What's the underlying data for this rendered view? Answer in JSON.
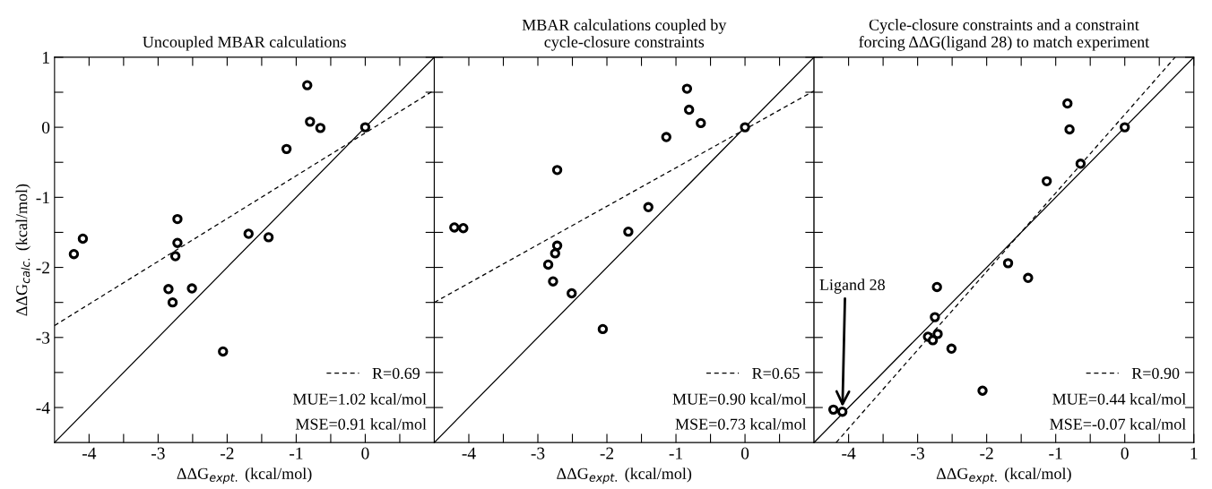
{
  "chart_data": [
    {
      "type": "scatter",
      "title": "Uncoupled MBAR calculations",
      "xlabel": "ΔΔG$_{expt.}$ (kcal/mol)",
      "ylabel": "ΔΔG$_{calc.}$ (kcal/mol)",
      "xlim": [
        -4.5,
        1
      ],
      "ylim": [
        -4.5,
        1
      ],
      "xticks": [
        -4,
        {
          "value": -3.5,
          "label": null
        },
        -3,
        {
          "value": -2.5,
          "label": null
        },
        -2,
        {
          "value": -1.5,
          "label": null
        },
        -1,
        {
          "value": -0.5,
          "label": null
        },
        0,
        {
          "value": 0.5,
          "label": null
        }
      ],
      "yticks": [
        1,
        {
          "value": 0.5,
          "label": null
        },
        0,
        {
          "value": -0.5,
          "label": null
        },
        -1,
        {
          "value": -1.5,
          "label": null
        },
        -2,
        {
          "value": -2.5,
          "label": null
        },
        -3,
        {
          "value": -3.5,
          "label": null
        },
        -4
      ],
      "legend": "bottom right",
      "series": [
        {
          "type": "scatter",
          "marker": "circle",
          "color": "#000000",
          "x": [
            -0.84,
            -0.8,
            -0.65,
            0,
            -1.14,
            -1.69,
            -1.4,
            -2.72,
            -2.72,
            -2.75,
            -2.85,
            -2.79,
            -2.51,
            -2.06,
            -4.22,
            -4.09
          ],
          "values": [
            0.6,
            0.08,
            -0.01,
            0,
            -0.31,
            -1.52,
            -1.57,
            -1.31,
            -1.65,
            -1.84,
            -2.31,
            -2.5,
            -2.3,
            -3.2,
            -1.81,
            -1.59
          ]
        },
        {
          "type": "line",
          "color": "#000000",
          "line_style": "solid",
          "x": [
            -4.5,
            1
          ],
          "values": [
            -4.5,
            1
          ]
        },
        {
          "type": "line",
          "color": "#000000",
          "line_style": "dashed",
          "name": "R=0.69",
          "x": [
            -4.5,
            1
          ],
          "values": [
            -2.83,
            0.53
          ]
        }
      ],
      "annotations": [
        "MUE=1.02 kcal/mol",
        "MSE=0.91 kcal/mol"
      ]
    },
    {
      "type": "scatter",
      "title": "MBAR calculations coupled by\ncycle-closure constraints",
      "xlabel": "ΔΔG$_{expt.}$ (kcal/mol)",
      "xlim": [
        -4.5,
        1
      ],
      "ylim": [
        -4.5,
        1
      ],
      "xticks": [
        -4,
        {
          "value": -3.5,
          "label": null
        },
        -3,
        {
          "value": -2.5,
          "label": null
        },
        -2,
        {
          "value": -1.5,
          "label": null
        },
        -1,
        {
          "value": -0.5,
          "label": null
        },
        0,
        {
          "value": 0.5,
          "label": null
        }
      ],
      "yticks": [
        1,
        {
          "value": 0.5,
          "label": null
        },
        0,
        {
          "value": -0.5,
          "label": null
        },
        -1,
        {
          "value": -1.5,
          "label": null
        },
        -2,
        {
          "value": -2.5,
          "label": null
        },
        -3,
        {
          "value": -3.5,
          "label": null
        },
        -4
      ],
      "tick_labels": "x",
      "legend": "bottom right",
      "series": [
        {
          "type": "scatter",
          "marker": "circle",
          "color": "#000000",
          "x": [
            -0.84,
            -0.81,
            -0.64,
            0,
            -1.14,
            -2.72,
            -1.4,
            -1.69,
            -4.21,
            -4.08,
            -2.72,
            -2.75,
            -2.85,
            -2.78,
            -2.51,
            -2.06
          ],
          "values": [
            0.55,
            0.25,
            0.06,
            0,
            -0.14,
            -0.61,
            -1.14,
            -1.49,
            -1.43,
            -1.44,
            -1.69,
            -1.8,
            -1.96,
            -2.2,
            -2.37,
            -2.88
          ]
        },
        {
          "type": "line",
          "color": "#000000",
          "line_style": "solid",
          "x": [
            -4.5,
            1
          ],
          "values": [
            -4.5,
            1
          ]
        },
        {
          "type": "line",
          "color": "#000000",
          "line_style": "dashed",
          "name": "R=0.65",
          "x": [
            -4.5,
            1
          ],
          "values": [
            -2.5,
            0.52
          ]
        }
      ],
      "annotations": [
        "MUE=0.90 kcal/mol",
        "MSE=0.73 kcal/mol"
      ]
    },
    {
      "type": "scatter",
      "title": "Cycle-closure constraints and a constraint\nforcing ΔΔG(ligand 28) to match experiment",
      "xlabel": "ΔΔG$_{expt.}$ (kcal/mol)",
      "xlim": [
        -4.5,
        1
      ],
      "ylim": [
        -4.5,
        1
      ],
      "xticks": [
        -4,
        {
          "value": -3.5,
          "label": null
        },
        -3,
        {
          "value": -2.5,
          "label": null
        },
        -2,
        {
          "value": -1.5,
          "label": null
        },
        -1,
        {
          "value": -0.5,
          "label": null
        },
        0,
        {
          "value": 0.5,
          "label": null
        },
        1
      ],
      "yticks": [
        1,
        {
          "value": 0.5,
          "label": null
        },
        0,
        {
          "value": -0.5,
          "label": null
        },
        -1,
        {
          "value": -1.5,
          "label": null
        },
        -2,
        {
          "value": -2.5,
          "label": null
        },
        -3,
        {
          "value": -3.5,
          "label": null
        },
        -4
      ],
      "tick_labels": "x",
      "legend": "bottom right",
      "series": [
        {
          "type": "scatter",
          "marker": "circle",
          "color": "#000000",
          "x": [
            -0.83,
            -0.8,
            -0.64,
            0,
            -1.13,
            -1.69,
            -1.4,
            -2.72,
            -2.75,
            -2.85,
            -2.78,
            -2.71,
            -2.51,
            -2.06,
            -4.22,
            -4.09
          ],
          "values": [
            0.34,
            -0.03,
            -0.52,
            0,
            -0.77,
            -1.94,
            -2.15,
            -2.28,
            -2.71,
            -2.99,
            -3.04,
            -2.95,
            -3.16,
            -3.76,
            -4.03,
            -4.06
          ]
        },
        {
          "type": "line",
          "color": "#000000",
          "line_style": "solid",
          "x": [
            -4.5,
            1
          ],
          "values": [
            -4.5,
            1
          ]
        },
        {
          "type": "line",
          "color": "#000000",
          "line_style": "dashed",
          "name": "R=0.90",
          "x": [
            -4.18,
            0.73
          ],
          "values": [
            -4.5,
            1
          ]
        }
      ],
      "annotations": [
        {
          "text": "Ligand 28",
          "x": -4.09,
          "y": -4.06
        },
        "MUE=0.44 kcal/mol",
        "MSE=-0.07 kcal/mol"
      ]
    }
  ]
}
